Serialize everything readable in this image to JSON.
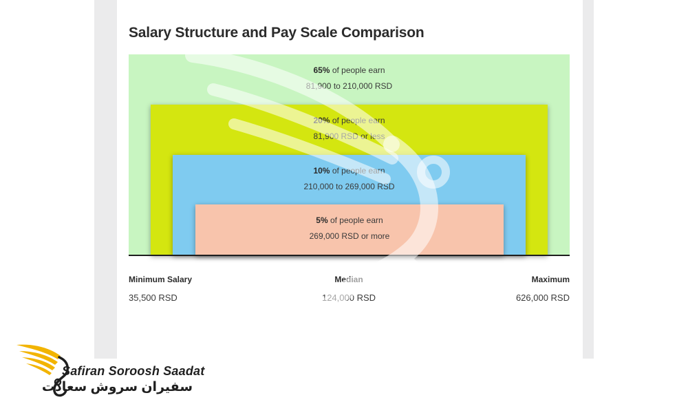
{
  "chart_data": {
    "type": "nested-area",
    "title": "Salary Structure and Pay Scale Comparison",
    "bands": [
      {
        "percent": "65%",
        "text": "of people earn",
        "range": "81,900 to 210,000 RSD",
        "color": "#c8f5c1"
      },
      {
        "percent": "20%",
        "text": "of people earn",
        "range": "81,900 RSD or less",
        "color": "#d4e610"
      },
      {
        "percent": "10%",
        "text": "of people earn",
        "range": "210,000 to 269,000 RSD",
        "color": "#7fcbf0"
      },
      {
        "percent": "5%",
        "text": "of people earn",
        "range": "269,000 RSD or more",
        "color": "#f8c4ac"
      }
    ],
    "stats": {
      "min_label": "Minimum Salary",
      "min_value": "35,500 RSD",
      "median_label": "Median",
      "median_value": "124,000 RSD",
      "max_label": "Maximum",
      "max_value": "626,000 RSD"
    }
  },
  "logo": {
    "name_en": "Safiran Soroosh Saadat",
    "name_fa": "سفیران سروش سعادت",
    "accent_color": "#f2b400"
  }
}
